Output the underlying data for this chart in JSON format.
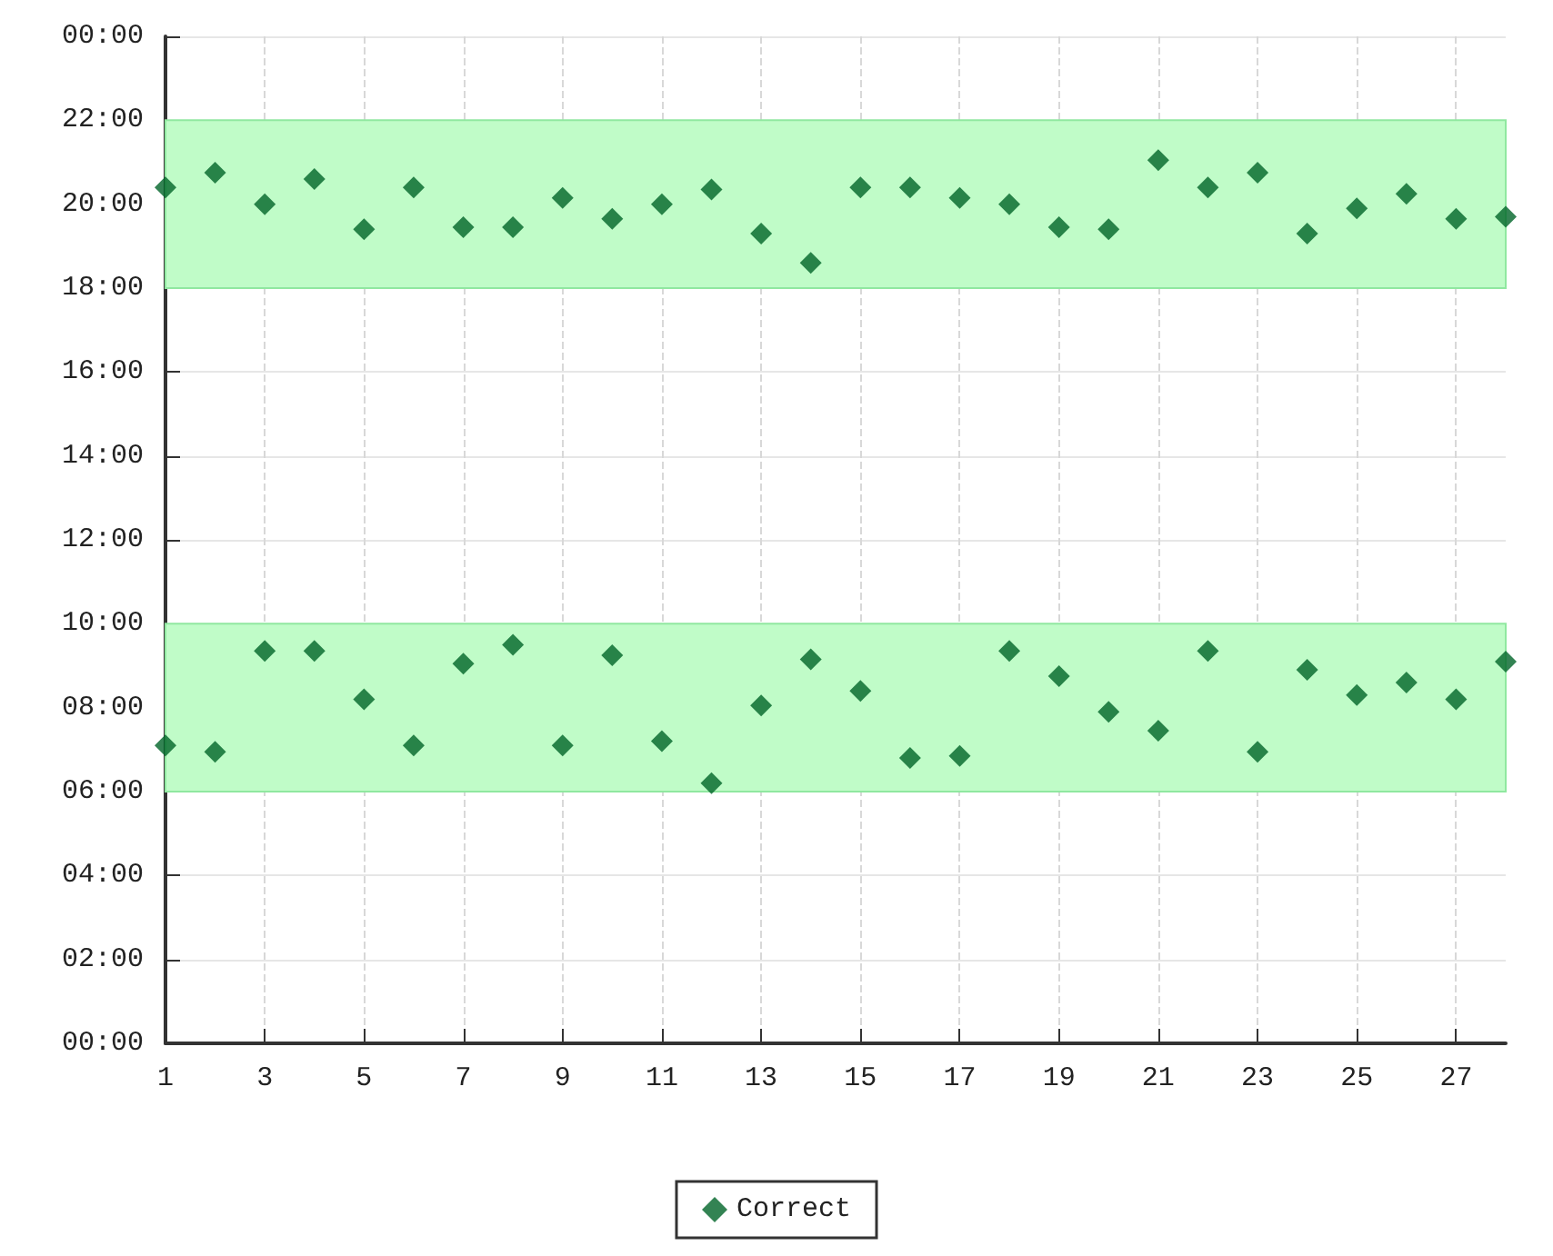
{
  "chart_data": {
    "type": "scatter",
    "marker": "diamond",
    "grid": true,
    "legend": "bottom",
    "xlim": [
      1,
      28
    ],
    "xticks": [
      1,
      3,
      5,
      7,
      9,
      11,
      13,
      15,
      17,
      19,
      21,
      23,
      25,
      27
    ],
    "ylim": [
      0,
      24
    ],
    "yticks": [
      {
        "value": 0,
        "label": "00:00"
      },
      {
        "value": 2,
        "label": "02:00"
      },
      {
        "value": 4,
        "label": "04:00"
      },
      {
        "value": 6,
        "label": "06:00"
      },
      {
        "value": 8,
        "label": "08:00"
      },
      {
        "value": 10,
        "label": "10:00"
      },
      {
        "value": 12,
        "label": "12:00"
      },
      {
        "value": 14,
        "label": "14:00"
      },
      {
        "value": 16,
        "label": "16:00"
      },
      {
        "value": 18,
        "label": "18:00"
      },
      {
        "value": 20,
        "label": "20:00"
      },
      {
        "value": 22,
        "label": "22:00"
      },
      {
        "value": 24,
        "label": "00:00"
      }
    ],
    "bands": [
      {
        "axis": "y",
        "from": 6,
        "to": 10,
        "color": "#c0fcc8"
      },
      {
        "axis": "y",
        "from": 18,
        "to": 22,
        "color": "#c0fcc8"
      }
    ],
    "series": [
      {
        "name": "Correct",
        "color": "#006428",
        "x": [
          1,
          2,
          3,
          4,
          5,
          6,
          7,
          8,
          9,
          10,
          11,
          12,
          13,
          14,
          15,
          16,
          17,
          18,
          19,
          20,
          21,
          22,
          23,
          24,
          25,
          26,
          27,
          28,
          1,
          2,
          3,
          4,
          5,
          6,
          7,
          8,
          9,
          10,
          11,
          12,
          13,
          14,
          15,
          16,
          17,
          18,
          19,
          20,
          21,
          22,
          23,
          24,
          25,
          26,
          27,
          28
        ],
        "values": [
          20.4,
          20.75,
          20,
          20.6,
          19.4,
          20.4,
          19.45,
          19.45,
          20.15,
          19.65,
          20,
          20.35,
          19.3,
          18.6,
          20.4,
          20.4,
          20.15,
          20,
          19.45,
          19.4,
          21.05,
          20.4,
          20.75,
          19.3,
          19.9,
          20.25,
          19.65,
          19.7,
          7.1,
          6.95,
          9.35,
          9.35,
          8.2,
          7.1,
          9.05,
          9.5,
          7.1,
          9.25,
          7.2,
          6.2,
          8.05,
          9.15,
          8.4,
          6.8,
          6.85,
          9.35,
          8.75,
          7.9,
          7.45,
          9.35,
          6.95,
          8.9,
          8.3,
          8.6,
          8.2,
          9.1
        ]
      }
    ]
  }
}
